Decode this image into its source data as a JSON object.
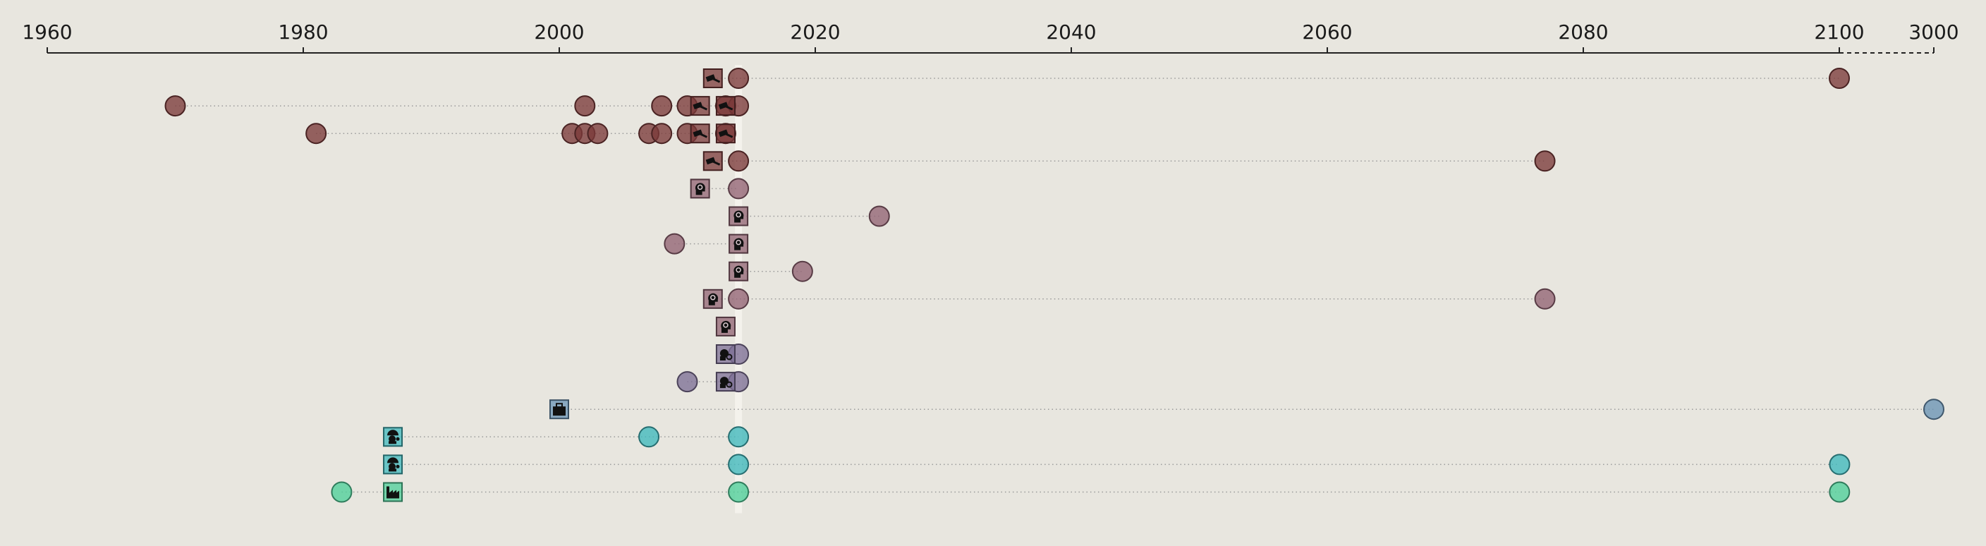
{
  "chart_data": {
    "type": "scatter",
    "title": "",
    "xlabel": "",
    "ylabel": "",
    "grid": false,
    "legend": "none",
    "x_axis": {
      "scale": "piecewise-linear",
      "range": [
        1960,
        3000
      ],
      "ticks": [
        "1960",
        "1980",
        "2000",
        "2020",
        "2040",
        "2060",
        "2080",
        "2100",
        "3000"
      ],
      "linear_segment": [
        1960,
        2100
      ],
      "compressed_segment": [
        2100,
        3000
      ],
      "compressed_segment_style": "dashed"
    },
    "highlight_year": 2014,
    "colors": {
      "background": "#e8e6df",
      "axis": "#222222",
      "connector": "#9a9a9a",
      "highlight_band": "#f4f2ec",
      "icon_glyph": "#111111"
    },
    "rows": [
      {
        "color": "#7b3a3a",
        "icon": "gavel-icon",
        "icon_year": 2012,
        "points": [
          2014,
          2100
        ]
      },
      {
        "color": "#7b3a3a",
        "icon": "gavel-icon",
        "icon_year": 2011,
        "icon_year_2": 2013,
        "points": [
          1970,
          2002,
          2008,
          2010,
          2013,
          2014
        ]
      },
      {
        "color": "#7b3a3a",
        "icon": "gavel-icon",
        "icon_year": 2011,
        "icon_year_2": 2013,
        "points": [
          1981,
          2001,
          2002,
          2003,
          2007,
          2008,
          2010,
          2013
        ]
      },
      {
        "color": "#7b3a3a",
        "icon": "gavel-icon",
        "icon_year": 2012,
        "points": [
          2014,
          2077
        ]
      },
      {
        "color": "#926373",
        "icon": "head-icon",
        "icon_year": 2011,
        "points": [
          2014
        ]
      },
      {
        "color": "#926373",
        "icon": "head-icon",
        "icon_year": 2014,
        "points": [
          2025
        ]
      },
      {
        "color": "#926373",
        "icon": "head-icon",
        "icon_year": 2014,
        "points": [
          2009
        ]
      },
      {
        "color": "#926373",
        "icon": "head-icon",
        "icon_year": 2014,
        "points": [
          2019
        ]
      },
      {
        "color": "#926373",
        "icon": "head-icon",
        "icon_year": 2012,
        "points": [
          2014,
          2077
        ]
      },
      {
        "color": "#926373",
        "icon": "head-icon",
        "icon_year": 2013,
        "points": []
      },
      {
        "color": "#7e6f96",
        "icon": "gear-head-icon",
        "icon_year": 2013,
        "points": [
          2014
        ]
      },
      {
        "color": "#7e6f96",
        "icon": "gear-head-icon",
        "icon_year": 2013,
        "points": [
          2010,
          2014
        ]
      },
      {
        "color": "#6a93b5",
        "icon": "briefcase-icon",
        "icon_year": 2000,
        "points": [
          3000
        ]
      },
      {
        "color": "#3fb8bd",
        "icon": "worker-icon",
        "icon_year": 1987,
        "points": [
          2007,
          2014
        ]
      },
      {
        "color": "#3fb8bd",
        "icon": "worker-icon",
        "icon_year": 1987,
        "points": [
          2014,
          2103
        ]
      },
      {
        "color": "#4ecf9a",
        "icon": "factory-icon",
        "icon_year": 1987,
        "points": [
          1983,
          2014,
          2102
        ]
      }
    ]
  }
}
